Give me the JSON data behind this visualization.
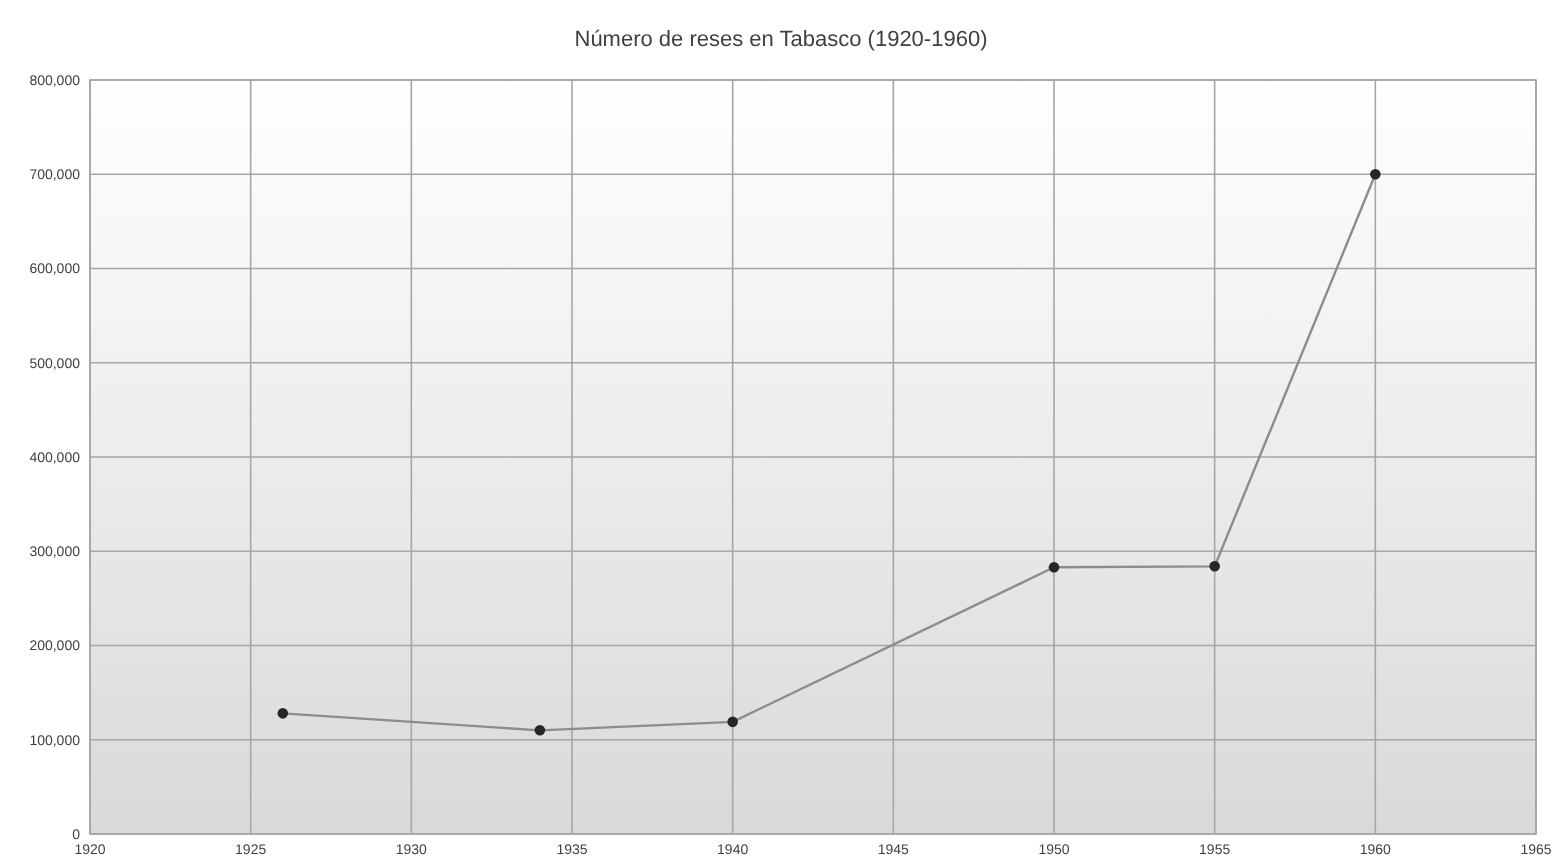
{
  "chart_data": {
    "type": "line",
    "title": "Número de reses en Tabasco (1920-1960)",
    "x": [
      1926,
      1934,
      1940,
      1950,
      1955,
      1960
    ],
    "series": [
      {
        "color": "#8c8c8c",
        "values": [
          128000,
          110000,
          119000,
          283000,
          284000,
          700000
        ]
      }
    ],
    "xlim": [
      1920,
      1965
    ],
    "xticks": [
      1920,
      1925,
      1930,
      1935,
      1940,
      1945,
      1950,
      1955,
      1960,
      1965
    ],
    "ylim": [
      0,
      800000
    ],
    "yticks": [
      {
        "value": 0,
        "label": "0"
      },
      {
        "value": 100000,
        "label": "100,000"
      },
      {
        "value": 200000,
        "label": "200,000"
      },
      {
        "value": 300000,
        "label": "300,000"
      },
      {
        "value": 400000,
        "label": "400,000"
      },
      {
        "value": 500000,
        "label": "500,000"
      },
      {
        "value": 600000,
        "label": "600,000"
      },
      {
        "value": 700000,
        "label": "700,000"
      },
      {
        "value": 800000,
        "label": "800,000"
      }
    ],
    "grid": true,
    "marker": "circle",
    "line_style": "solid"
  }
}
